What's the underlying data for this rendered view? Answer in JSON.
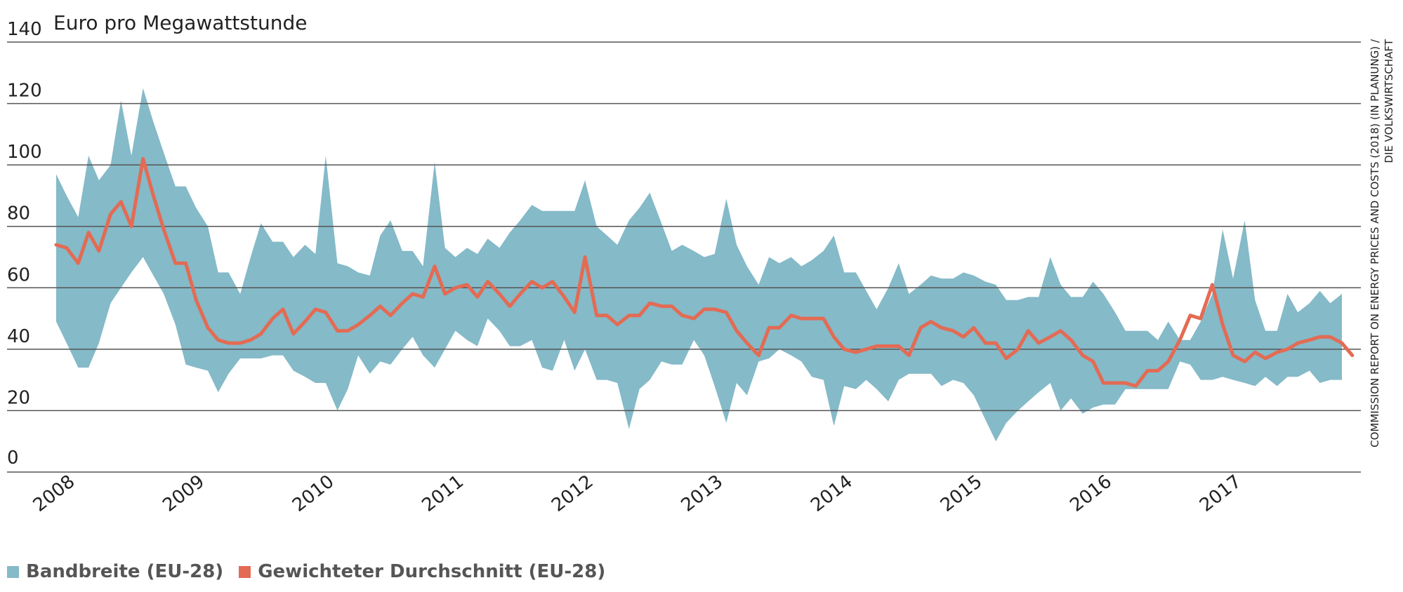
{
  "chart_data": {
    "type": "area",
    "y_unit_label": "Euro pro Megawattstunde",
    "ylim": [
      0,
      140
    ],
    "yticks": [
      0,
      20,
      40,
      60,
      80,
      100,
      120,
      140
    ],
    "xlim": [
      2008,
      2018.05
    ],
    "xticks": [
      2008,
      2009,
      2010,
      2011,
      2012,
      2013,
      2014,
      2015,
      2016,
      2017
    ],
    "grid": true,
    "legend_position": "bottom-left",
    "colors": {
      "range": "#85bac8",
      "average": "#e36b54",
      "grid": "#555555"
    },
    "series": [
      {
        "name": "Bandbreite (EU-28)",
        "kind": "band",
        "x": [
          2008.0,
          2008.08,
          2008.17,
          2008.25,
          2008.33,
          2008.42,
          2008.5,
          2008.58,
          2008.67,
          2008.75,
          2008.83,
          2008.92,
          2009.0,
          2009.08,
          2009.17,
          2009.25,
          2009.33,
          2009.42,
          2009.5,
          2009.58,
          2009.67,
          2009.75,
          2009.83,
          2009.92,
          2010.0,
          2010.08,
          2010.17,
          2010.25,
          2010.33,
          2010.42,
          2010.5,
          2010.58,
          2010.67,
          2010.75,
          2010.83,
          2010.92,
          2011.0,
          2011.08,
          2011.17,
          2011.25,
          2011.33,
          2011.42,
          2011.5,
          2011.58,
          2011.67,
          2011.75,
          2011.83,
          2011.92,
          2012.0,
          2012.08,
          2012.17,
          2012.25,
          2012.33,
          2012.42,
          2012.5,
          2012.58,
          2012.67,
          2012.75,
          2012.83,
          2012.92,
          2013.0,
          2013.08,
          2013.17,
          2013.25,
          2013.33,
          2013.42,
          2013.5,
          2013.58,
          2013.67,
          2013.75,
          2013.83,
          2013.92,
          2014.0,
          2014.08,
          2014.17,
          2014.25,
          2014.33,
          2014.42,
          2014.5,
          2014.58,
          2014.67,
          2014.75,
          2014.83,
          2014.92,
          2015.0,
          2015.08,
          2015.17,
          2015.25,
          2015.33,
          2015.42,
          2015.5,
          2015.58,
          2015.67,
          2015.75,
          2015.83,
          2015.92,
          2016.0,
          2016.08,
          2016.17,
          2016.25,
          2016.33,
          2016.42,
          2016.5,
          2016.58,
          2016.67,
          2016.75,
          2016.83,
          2016.92,
          2017.0,
          2017.08,
          2017.17,
          2017.25,
          2017.33,
          2017.42,
          2017.5,
          2017.58,
          2017.67,
          2017.75,
          2017.83,
          2017.92
        ],
        "high": [
          97,
          90,
          83,
          103,
          95,
          100,
          121,
          103,
          125,
          114,
          104,
          93,
          93,
          86,
          80,
          65,
          65,
          58,
          70,
          81,
          75,
          75,
          70,
          74,
          71,
          103,
          68,
          67,
          65,
          64,
          77,
          82,
          72,
          72,
          67,
          101,
          73,
          70,
          73,
          71,
          76,
          73,
          78,
          82,
          87,
          85,
          85,
          85,
          85,
          95,
          80,
          77,
          74,
          82,
          86,
          91,
          81,
          72,
          74,
          72,
          70,
          71,
          89,
          74,
          67,
          61,
          70,
          68,
          70,
          67,
          69,
          72,
          77,
          65,
          65,
          59,
          53,
          60,
          68,
          58,
          61,
          64,
          63,
          63,
          65,
          64,
          62,
          61,
          56,
          56,
          57,
          57,
          70,
          61,
          57,
          57,
          62,
          58,
          52,
          46,
          46,
          46,
          43,
          49,
          43,
          43,
          49,
          58,
          79,
          63,
          82,
          56,
          46,
          46,
          58,
          52,
          55,
          59,
          55,
          58
        ],
        "low": [
          49,
          42,
          34,
          34,
          42,
          55,
          60,
          65,
          70,
          64,
          58,
          48,
          35,
          34,
          33,
          26,
          32,
          37,
          37,
          37,
          38,
          38,
          33,
          31,
          29,
          29,
          20,
          27,
          38,
          32,
          36,
          35,
          40,
          44,
          38,
          34,
          40,
          46,
          43,
          41,
          50,
          46,
          41,
          41,
          43,
          34,
          33,
          43,
          33,
          40,
          30,
          30,
          29,
          14,
          27,
          30,
          36,
          35,
          35,
          43,
          38,
          28,
          16,
          29,
          25,
          36,
          37,
          40,
          38,
          36,
          31,
          30,
          15,
          28,
          27,
          30,
          27,
          23,
          30,
          32,
          32,
          32,
          28,
          30,
          29,
          25,
          17,
          10,
          16,
          20,
          23,
          26,
          29,
          20,
          24,
          19,
          21,
          22,
          22,
          27,
          27,
          27,
          27,
          27,
          36,
          35,
          30,
          30,
          31,
          30,
          29,
          28,
          31,
          28,
          31,
          31,
          33,
          29,
          30,
          30
        ]
      },
      {
        "name": "Gewichteter Durchschnitt (EU-28)",
        "kind": "line",
        "x": [
          2008.0,
          2008.08,
          2008.17,
          2008.25,
          2008.33,
          2008.42,
          2008.5,
          2008.58,
          2008.67,
          2008.75,
          2008.83,
          2008.92,
          2009.0,
          2009.08,
          2009.17,
          2009.25,
          2009.33,
          2009.42,
          2009.5,
          2009.58,
          2009.67,
          2009.75,
          2009.83,
          2009.92,
          2010.0,
          2010.08,
          2010.17,
          2010.25,
          2010.33,
          2010.42,
          2010.5,
          2010.58,
          2010.67,
          2010.75,
          2010.83,
          2010.92,
          2011.0,
          2011.08,
          2011.17,
          2011.25,
          2011.33,
          2011.42,
          2011.5,
          2011.58,
          2011.67,
          2011.75,
          2011.83,
          2011.92,
          2012.0,
          2012.08,
          2012.17,
          2012.25,
          2012.33,
          2012.42,
          2012.5,
          2012.58,
          2012.67,
          2012.75,
          2012.83,
          2012.92,
          2013.0,
          2013.08,
          2013.17,
          2013.25,
          2013.33,
          2013.42,
          2013.5,
          2013.58,
          2013.67,
          2013.75,
          2013.83,
          2013.92,
          2014.0,
          2014.08,
          2014.17,
          2014.25,
          2014.33,
          2014.42,
          2014.5,
          2014.58,
          2014.67,
          2014.75,
          2014.83,
          2014.92,
          2015.0,
          2015.08,
          2015.17,
          2015.25,
          2015.33,
          2015.42,
          2015.5,
          2015.58,
          2015.67,
          2015.75,
          2015.83,
          2015.92,
          2016.0,
          2016.08,
          2016.17,
          2016.25,
          2016.33,
          2016.42,
          2016.5,
          2016.58,
          2016.67,
          2016.75,
          2016.83,
          2016.92,
          2017.0,
          2017.08,
          2017.17,
          2017.25,
          2017.33,
          2017.42,
          2017.5,
          2017.58,
          2017.67,
          2017.75,
          2017.83,
          2017.92,
          2018.0
        ],
        "y": [
          74,
          73,
          68,
          78,
          72,
          84,
          88,
          80,
          102,
          90,
          79,
          68,
          68,
          56,
          47,
          43,
          42,
          42,
          43,
          45,
          50,
          53,
          45,
          49,
          53,
          52,
          46,
          46,
          48,
          51,
          54,
          51,
          55,
          58,
          57,
          67,
          58,
          60,
          61,
          57,
          62,
          58,
          54,
          58,
          62,
          60,
          62,
          57,
          52,
          70,
          51,
          51,
          48,
          51,
          51,
          55,
          54,
          54,
          51,
          50,
          53,
          53,
          52,
          46,
          42,
          38,
          47,
          47,
          51,
          50,
          50,
          50,
          44,
          40,
          39,
          40,
          41,
          41,
          41,
          38,
          47,
          49,
          47,
          46,
          44,
          47,
          42,
          42,
          37,
          40,
          46,
          42,
          44,
          46,
          43,
          38,
          36,
          29,
          29,
          29,
          28,
          33,
          33,
          36,
          43,
          51,
          50,
          61,
          48,
          38,
          36,
          39,
          37,
          39,
          40,
          42,
          43,
          44,
          44,
          42,
          38
        ]
      }
    ]
  },
  "source_lines": [
    "Commission Report on Energy Prices and Costs (2018) (in Planung) /",
    "Die Volkswirtschaft"
  ]
}
